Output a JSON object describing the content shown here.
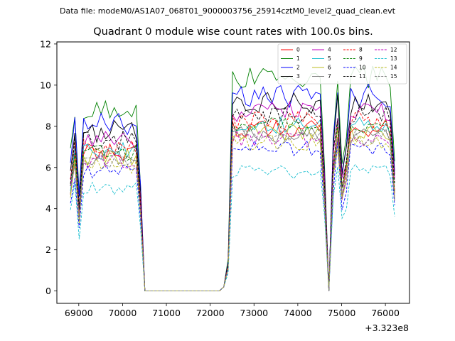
{
  "header_note": "Data file: modeM0/AS1A07_068T01_9000003756_25914cztM0_level2_quad_clean.evt",
  "chart_data": {
    "type": "line",
    "title": "Quadrant 0 module wise count rates with 100.0s bins.",
    "xlabel": "",
    "ylabel": "",
    "x_offset_label": "+3.323e8",
    "xlim": [
      68500,
      76550
    ],
    "ylim": [
      -0.6,
      12.1
    ],
    "x_ticks": [
      69000,
      70000,
      71000,
      72000,
      73000,
      74000,
      75000,
      76000
    ],
    "y_ticks": [
      0,
      2,
      4,
      6,
      8,
      10,
      12
    ],
    "legend_position": "top-right",
    "grid": false,
    "segments": [
      {
        "x_start": 68810,
        "x_end": 70410
      },
      {
        "x_start": 72310,
        "x_end": 74610
      },
      {
        "x_start": 74810,
        "x_end": 75010
      },
      {
        "x_start": 75110,
        "x_end": 76210
      }
    ],
    "series": [
      {
        "name": "0",
        "color": "#ff0000",
        "style": "solid",
        "level": 7.9,
        "variation": 0.45,
        "seed": 1
      },
      {
        "name": "1",
        "color": "#008000",
        "style": "solid",
        "level": 10.4,
        "variation": 0.55,
        "seed": 2
      },
      {
        "name": "2",
        "color": "#0000ff",
        "style": "solid",
        "level": 9.5,
        "variation": 0.6,
        "seed": 3
      },
      {
        "name": "3",
        "color": "#000000",
        "style": "solid",
        "level": 9.1,
        "variation": 0.55,
        "seed": 4
      },
      {
        "name": "4",
        "color": "#bf00bf",
        "style": "solid",
        "level": 8.7,
        "variation": 0.5,
        "seed": 5
      },
      {
        "name": "5",
        "color": "#17becf",
        "style": "solid",
        "level": 8.0,
        "variation": 0.45,
        "seed": 6
      },
      {
        "name": "6",
        "color": "#bcbd22",
        "style": "solid",
        "level": 7.7,
        "variation": 0.45,
        "seed": 7
      },
      {
        "name": "7",
        "color": "#7f7f7f",
        "style": "solid",
        "level": 7.6,
        "variation": 0.4,
        "seed": 8
      },
      {
        "name": "8",
        "color": "#ff0000",
        "style": "dashed",
        "level": 8.3,
        "variation": 0.45,
        "seed": 9
      },
      {
        "name": "9",
        "color": "#008000",
        "style": "dashed",
        "level": 8.0,
        "variation": 0.45,
        "seed": 10
      },
      {
        "name": "10",
        "color": "#0000ff",
        "style": "dashed",
        "level": 6.9,
        "variation": 0.4,
        "seed": 11
      },
      {
        "name": "11",
        "color": "#000000",
        "style": "dashed",
        "level": 8.6,
        "variation": 0.5,
        "seed": 12
      },
      {
        "name": "12",
        "color": "#bf00bf",
        "style": "dashed",
        "level": 7.4,
        "variation": 0.4,
        "seed": 13
      },
      {
        "name": "13",
        "color": "#17becf",
        "style": "dashed",
        "level": 5.8,
        "variation": 0.35,
        "seed": 14
      },
      {
        "name": "14",
        "color": "#bcbd22",
        "style": "dashed",
        "level": 7.2,
        "variation": 0.4,
        "seed": 15
      },
      {
        "name": "15",
        "color": "#7f7f7f",
        "style": "dashed",
        "level": 7.5,
        "variation": 0.4,
        "seed": 16
      }
    ]
  }
}
